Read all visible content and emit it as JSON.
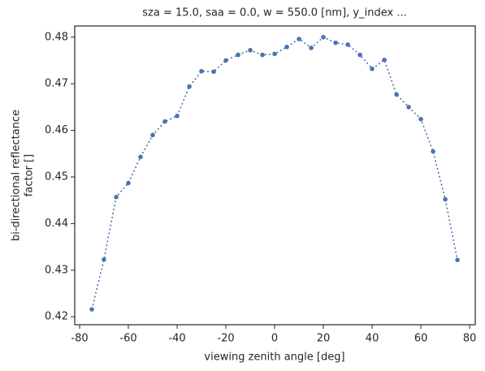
{
  "chart_data": {
    "type": "line",
    "title": "sza = 15.0, saa = 0.0, w = 550.0 [nm], y_index ...",
    "xlabel": "viewing zenith angle [deg]",
    "ylabel": [
      "bi-directional reflectance",
      "factor []"
    ],
    "x": [
      -75,
      -70,
      -65,
      -60,
      -55,
      -50,
      -45,
      -40,
      -35,
      -30,
      -25,
      -20,
      -15,
      -10,
      -5,
      0,
      5,
      10,
      15,
      20,
      25,
      30,
      35,
      40,
      45,
      50,
      55,
      60,
      65,
      70,
      75
    ],
    "series": [
      {
        "name": "bi-directional reflectance factor",
        "color": "#4c72b0",
        "values": [
          0.4216,
          0.4323,
          0.4457,
          0.4487,
          0.4543,
          0.459,
          0.4619,
          0.4631,
          0.4694,
          0.4727,
          0.4726,
          0.475,
          0.4762,
          0.4772,
          0.4762,
          0.4764,
          0.4779,
          0.4796,
          0.4777,
          0.48,
          0.4788,
          0.4784,
          0.4762,
          0.4732,
          0.4751,
          0.4677,
          0.465,
          0.4624,
          0.4555,
          0.4452,
          0.4322
        ]
      }
    ],
    "xlim": [
      -82,
      82.3
    ],
    "xticks": [
      -80,
      -60,
      -40,
      -20,
      0,
      20,
      40,
      60,
      80
    ],
    "ylim": [
      0.4183,
      0.4824
    ],
    "yticks": [
      0.42,
      0.43,
      0.44,
      0.45,
      0.46,
      0.47,
      0.48
    ],
    "grid": false
  }
}
